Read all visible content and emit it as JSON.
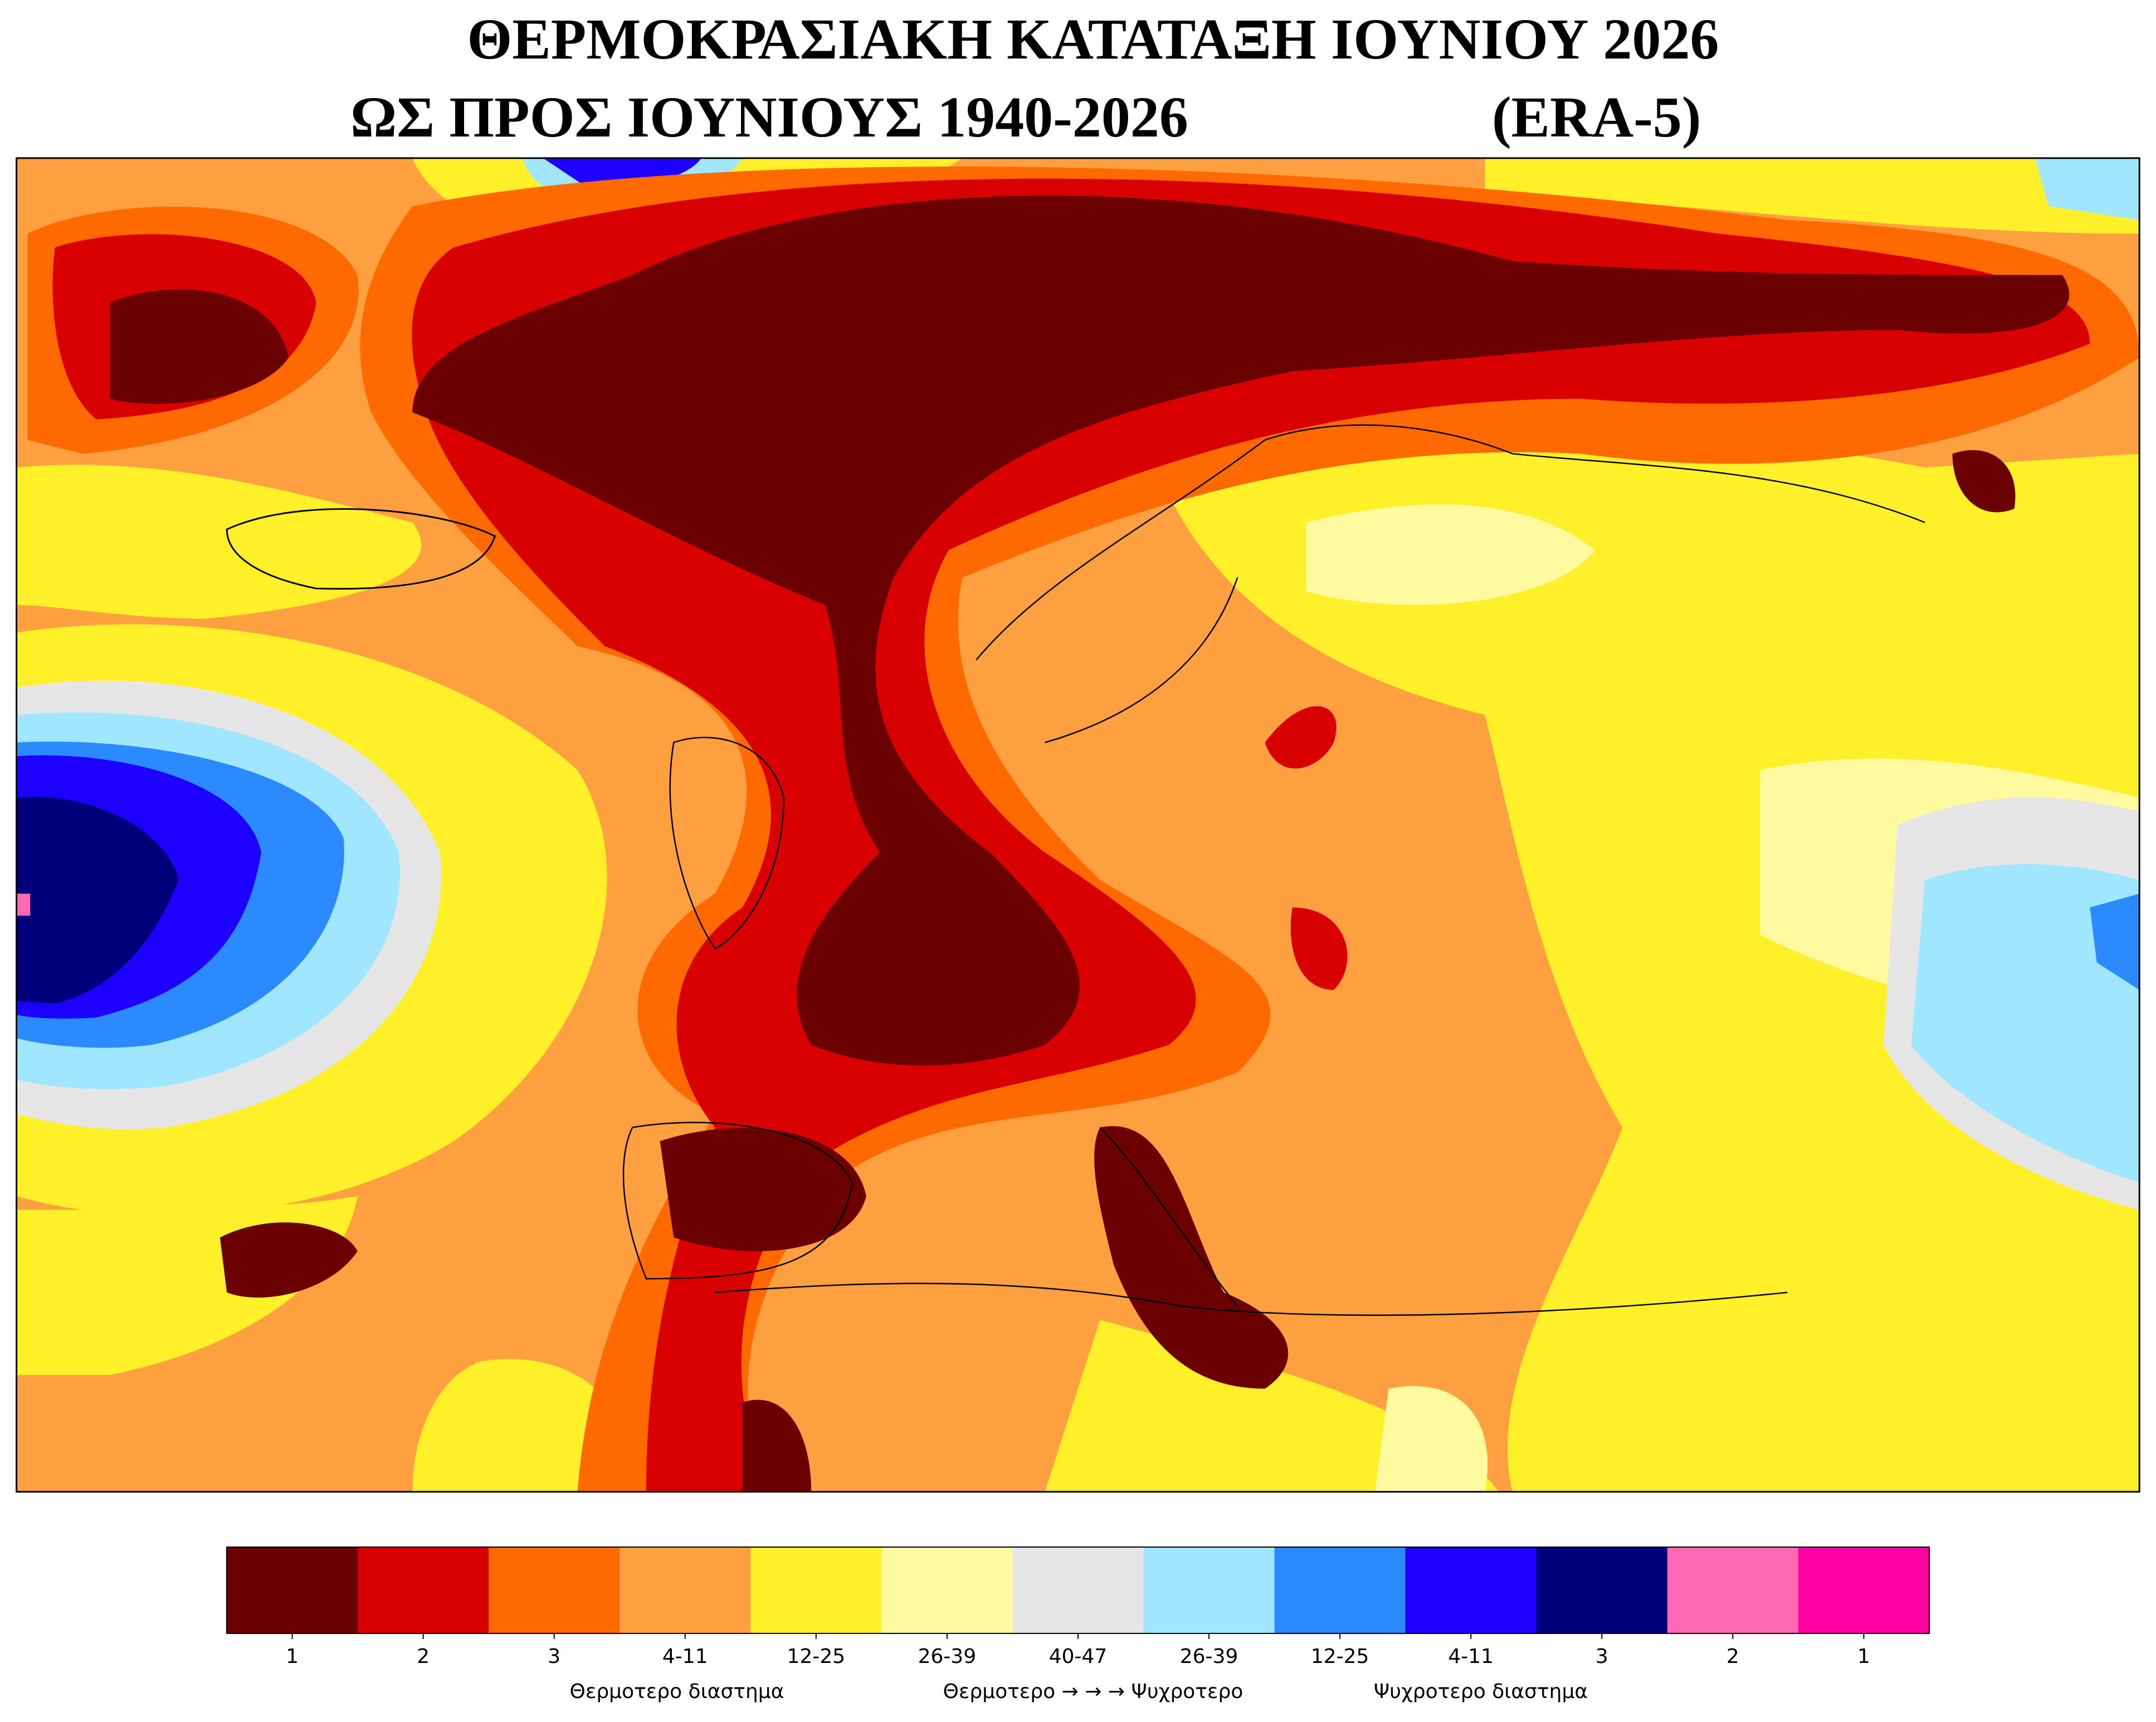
{
  "title": {
    "line1": "ΘΕΡΜΟΚΡΑΣΙΑΚΗ ΚΑΤΑΤΑΞΗ ΙΟΥΝΙΟΥ 2026",
    "line2": "ΩΣ ΠΡΟΣ ΙΟΥΝΙΟΥΣ 1940-2026",
    "line2_source": "(ERA-5)"
  },
  "colorbar": {
    "bins": [
      {
        "label": "1",
        "color": "#6b0000"
      },
      {
        "label": "2",
        "color": "#d80000"
      },
      {
        "label": "3",
        "color": "#ff6a00"
      },
      {
        "label": "4-11",
        "color": "#ffa040"
      },
      {
        "label": "12-25",
        "color": "#fff02a"
      },
      {
        "label": "26-39",
        "color": "#fffaa0"
      },
      {
        "label": "40-47",
        "color": "#e6e6e6"
      },
      {
        "label": "26-39",
        "color": "#a0e6ff"
      },
      {
        "label": "12-25",
        "color": "#2c8aff"
      },
      {
        "label": "4-11",
        "color": "#1e00ff"
      },
      {
        "label": "3",
        "color": "#00007a"
      },
      {
        "label": "2",
        "color": "#ff69b4"
      },
      {
        "label": "1",
        "color": "#ff00a0"
      }
    ],
    "captions": [
      "Θερμοτερο διαστημα",
      "Θερμοτερο → → → Ψυχροτερο",
      "Ψυχροτερο διαστημα"
    ]
  }
}
